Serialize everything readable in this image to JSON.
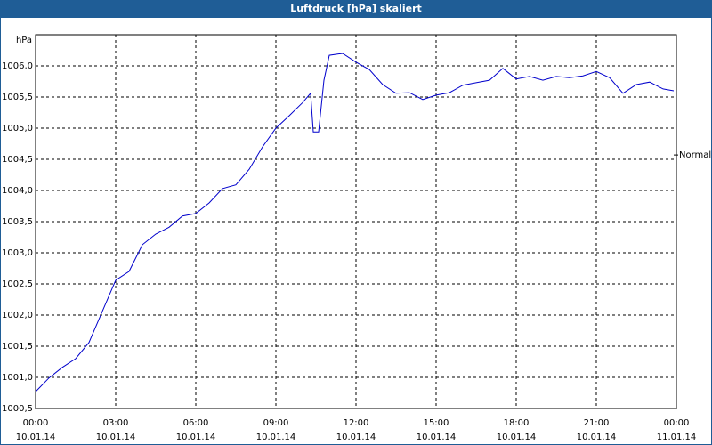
{
  "chart_data": {
    "type": "line",
    "title": "Luftdruck [hPa] skaliert",
    "y_label": "hPa",
    "x": [
      0,
      0.5,
      1,
      1.5,
      2,
      2.5,
      3,
      3.5,
      4,
      4.5,
      5,
      5.5,
      6,
      6.5,
      7,
      7.5,
      8,
      8.5,
      9,
      9.5,
      10,
      10.3,
      10.4,
      10.6,
      10.8,
      11,
      11.5,
      12,
      12.5,
      13,
      13.5,
      14,
      14.5,
      15,
      15.5,
      16,
      16.5,
      17,
      17.5,
      18,
      18.5,
      19,
      19.5,
      20,
      20.5,
      21,
      21.5,
      22,
      22.5,
      23,
      23.5,
      23.9
    ],
    "series": [
      {
        "name": "Luftdruck",
        "color": "#0000cc",
        "values": [
          1000.77,
          1000.99,
          1001.16,
          1001.3,
          1001.56,
          1002.06,
          1002.56,
          1002.7,
          1003.13,
          1003.3,
          1003.41,
          1003.59,
          1003.63,
          1003.8,
          1004.03,
          1004.09,
          1004.34,
          1004.7,
          1005.0,
          1005.2,
          1005.41,
          1005.56,
          1004.94,
          1004.94,
          1005.77,
          1006.17,
          1006.2,
          1006.06,
          1005.94,
          1005.7,
          1005.56,
          1005.57,
          1005.46,
          1005.53,
          1005.57,
          1005.69,
          1005.73,
          1005.77,
          1005.96,
          1005.79,
          1005.83,
          1005.77,
          1005.83,
          1005.81,
          1005.84,
          1005.91,
          1005.81,
          1005.56,
          1005.7,
          1005.74,
          1005.63,
          1005.6
        ]
      }
    ],
    "xlim": [
      0,
      24
    ],
    "xticks": [
      {
        "value": 0,
        "label": [
          "00:00",
          "10.01.14"
        ]
      },
      {
        "value": 3,
        "label": [
          "03:00",
          "10.01.14"
        ]
      },
      {
        "value": 6,
        "label": [
          "06:00",
          "10.01.14"
        ]
      },
      {
        "value": 9,
        "label": [
          "09:00",
          "10.01.14"
        ]
      },
      {
        "value": 12,
        "label": [
          "12:00",
          "10.01.14"
        ]
      },
      {
        "value": 15,
        "label": [
          "15:00",
          "10.01.14"
        ]
      },
      {
        "value": 18,
        "label": [
          "18:00",
          "10.01.14"
        ]
      },
      {
        "value": 21,
        "label": [
          "21:00",
          "10.01.14"
        ]
      },
      {
        "value": 24,
        "label": [
          "00:00",
          "11.01.14"
        ]
      }
    ],
    "ylim": [
      1000.5,
      1006.5
    ],
    "yticks": [
      {
        "value": 1000.5,
        "label": "1000,5"
      },
      {
        "value": 1001.0,
        "label": "1001,0"
      },
      {
        "value": 1001.5,
        "label": "1001,5"
      },
      {
        "value": 1002.0,
        "label": "1002,0"
      },
      {
        "value": 1002.5,
        "label": "1002,5"
      },
      {
        "value": 1003.0,
        "label": "1003,0"
      },
      {
        "value": 1003.5,
        "label": "1003,5"
      },
      {
        "value": 1004.0,
        "label": "1004,0"
      },
      {
        "value": 1004.5,
        "label": "1004,5"
      },
      {
        "value": 1005.0,
        "label": "1005,0"
      },
      {
        "value": 1005.5,
        "label": "1005,5"
      },
      {
        "value": 1006.0,
        "label": "1006,0"
      }
    ],
    "annotation": {
      "text": "Normal",
      "y": 1004.57
    },
    "grid": true
  }
}
